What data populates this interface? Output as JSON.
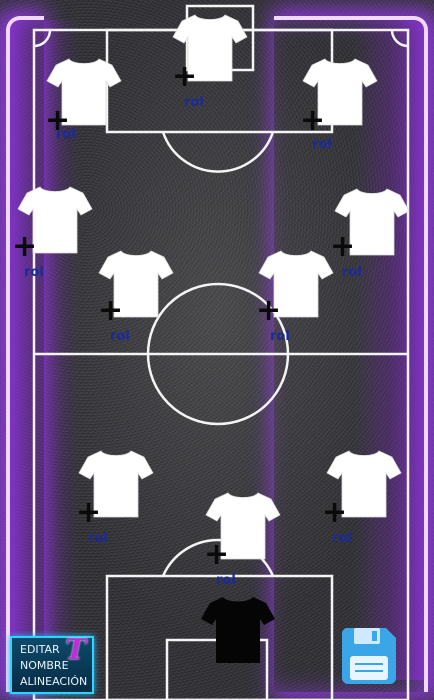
{
  "formation": {
    "players": [
      {
        "role_label": "rol",
        "shirt_color": "#ffffff"
      },
      {
        "role_label": "rol",
        "shirt_color": "#ffffff"
      },
      {
        "role_label": "rol",
        "shirt_color": "#ffffff"
      },
      {
        "role_label": "rol",
        "shirt_color": "#ffffff"
      },
      {
        "role_label": "rol",
        "shirt_color": "#ffffff"
      },
      {
        "role_label": "rol",
        "shirt_color": "#ffffff"
      },
      {
        "role_label": "rol",
        "shirt_color": "#ffffff"
      },
      {
        "role_label": "rol",
        "shirt_color": "#ffffff"
      },
      {
        "role_label": "rol",
        "shirt_color": "#ffffff"
      },
      {
        "role_label": "rol",
        "shirt_color": "#ffffff"
      }
    ],
    "goalkeeper": {
      "shirt_color": "#000000"
    },
    "add_icon": "plus-icon"
  },
  "toolbar": {
    "edit_lines": [
      "EDITAR",
      "NOMBRE",
      "ALINEACIÓN"
    ],
    "edit_logo": "T",
    "save_icon": "floppy-disk-icon"
  },
  "colors": {
    "neon": "#a040ff",
    "pitch_lines": "#ffffff",
    "role_text": "#1b2a9a",
    "button_border": "#2fd3ff",
    "save_icon": "#3aa6e8"
  }
}
